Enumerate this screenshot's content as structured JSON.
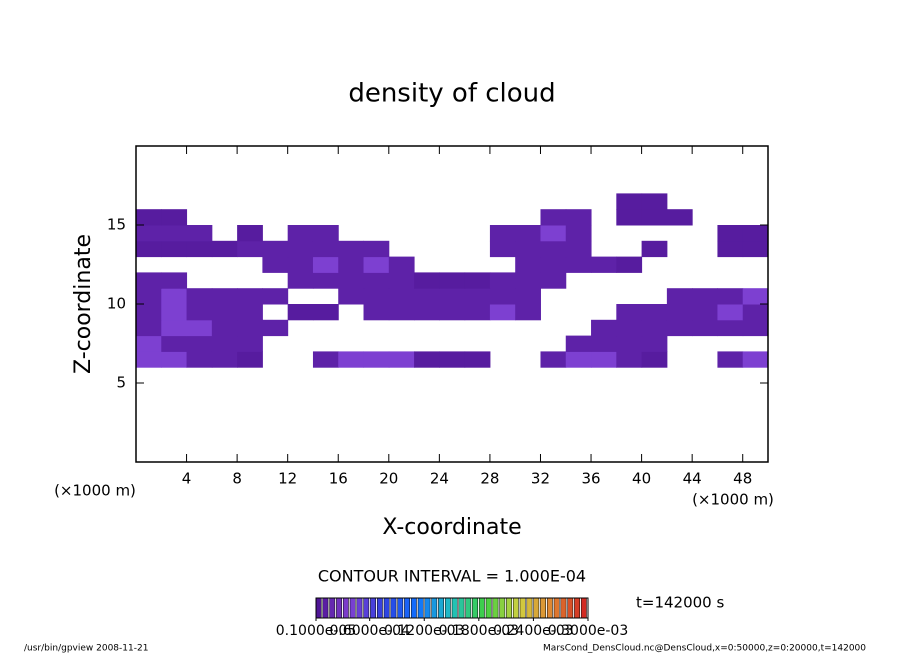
{
  "chart_data": {
    "type": "contour",
    "title": "density of cloud",
    "x_label": "X-coordinate",
    "y_label": "Z-coordinate",
    "x_unit": "(×1000 m)",
    "y_unit": "(×1000 m)",
    "xlim": [
      0,
      50
    ],
    "ylim": [
      0,
      20
    ],
    "xticks": [
      4,
      8,
      12,
      16,
      20,
      24,
      28,
      32,
      36,
      40,
      44,
      48
    ],
    "yticks": [
      5,
      10,
      15
    ],
    "x": [
      1,
      3,
      5,
      7,
      9,
      11,
      13,
      15,
      17,
      19,
      21,
      23,
      25,
      27,
      29,
      31,
      33,
      35,
      37,
      39,
      41,
      43,
      45,
      47,
      49
    ],
    "z": [
      6.5,
      7.5,
      8.5,
      9.5,
      10.5,
      11.5,
      12.5,
      13.5,
      14.5,
      15.5,
      16.5
    ],
    "values": [
      [
        4e-05,
        4e-05,
        1.5e-05,
        1.5e-05,
        1e-05,
        null,
        null,
        1.5e-05,
        4e-05,
        4e-05,
        4e-05,
        1e-05,
        1e-05,
        1e-05,
        null,
        null,
        1.5e-05,
        4e-05,
        4e-05,
        1.5e-05,
        1e-05,
        null,
        null,
        1.5e-05,
        4e-05
      ],
      [
        4e-05,
        1.5e-05,
        1.5e-05,
        1.5e-05,
        1.5e-05,
        null,
        null,
        null,
        null,
        null,
        null,
        null,
        null,
        null,
        null,
        null,
        null,
        1.5e-05,
        1.5e-05,
        1.5e-05,
        1.5e-05,
        null,
        null,
        null,
        null
      ],
      [
        1.5e-05,
        4e-05,
        4e-05,
        1.5e-05,
        1.5e-05,
        1.5e-05,
        null,
        null,
        null,
        null,
        null,
        null,
        null,
        null,
        null,
        null,
        null,
        null,
        1.5e-05,
        1.5e-05,
        1.5e-05,
        1.5e-05,
        1.5e-05,
        1.5e-05,
        1.5e-05
      ],
      [
        1.5e-05,
        4e-05,
        1.5e-05,
        1.5e-05,
        1.5e-05,
        null,
        1e-05,
        1e-05,
        null,
        1.5e-05,
        1.5e-05,
        1.5e-05,
        1.5e-05,
        1.5e-05,
        4e-05,
        1.5e-05,
        null,
        null,
        null,
        1.5e-05,
        1.5e-05,
        1.5e-05,
        1.5e-05,
        4e-05,
        1.5e-05
      ],
      [
        1.5e-05,
        4e-05,
        1.5e-05,
        1.5e-05,
        1.5e-05,
        1.5e-05,
        null,
        null,
        1.5e-05,
        1.5e-05,
        1.5e-05,
        1.5e-05,
        1.5e-05,
        1.5e-05,
        1.5e-05,
        1.5e-05,
        null,
        null,
        null,
        null,
        null,
        1.5e-05,
        1.5e-05,
        1.5e-05,
        4e-05
      ],
      [
        1.5e-05,
        1.5e-05,
        null,
        null,
        null,
        null,
        1.5e-05,
        1.5e-05,
        1.5e-05,
        1.5e-05,
        1.5e-05,
        1e-05,
        1e-05,
        1e-05,
        1.5e-05,
        1.5e-05,
        1.5e-05,
        null,
        null,
        null,
        null,
        null,
        null,
        null,
        null
      ],
      [
        null,
        null,
        null,
        null,
        null,
        1.5e-05,
        1.5e-05,
        4e-05,
        1.5e-05,
        4e-05,
        1.5e-05,
        null,
        null,
        null,
        null,
        1.5e-05,
        1.5e-05,
        1.5e-05,
        1.5e-05,
        1e-05,
        null,
        null,
        null,
        null,
        null
      ],
      [
        1e-05,
        1e-05,
        1e-05,
        1e-05,
        1.5e-05,
        1.5e-05,
        1.5e-05,
        1.5e-05,
        1.5e-05,
        1.5e-05,
        null,
        null,
        null,
        null,
        1.5e-05,
        1.5e-05,
        1.5e-05,
        1.5e-05,
        null,
        null,
        1e-05,
        null,
        null,
        1e-05,
        1e-05
      ],
      [
        1.5e-05,
        1.5e-05,
        1.5e-05,
        null,
        1e-05,
        null,
        1.5e-05,
        1.5e-05,
        null,
        null,
        null,
        null,
        null,
        null,
        1.5e-05,
        1.5e-05,
        4e-05,
        1.5e-05,
        null,
        null,
        null,
        null,
        null,
        1e-05,
        1e-05
      ],
      [
        1e-05,
        1e-05,
        null,
        null,
        null,
        null,
        null,
        null,
        null,
        null,
        null,
        null,
        null,
        null,
        null,
        null,
        1.5e-05,
        1.5e-05,
        null,
        1e-05,
        1e-05,
        1e-05,
        null,
        null,
        null
      ],
      [
        null,
        null,
        null,
        null,
        null,
        null,
        null,
        null,
        null,
        null,
        null,
        null,
        null,
        null,
        null,
        null,
        null,
        null,
        null,
        1e-05,
        1e-05,
        null,
        null,
        null,
        null
      ]
    ],
    "colorbar": {
      "lim": [
        1e-06,
        0.0003
      ],
      "colors": [
        "#4a1090",
        "#8040d0",
        "#3040e0",
        "#1070ff",
        "#20c0c0",
        "#40d040",
        "#d0d040",
        "#e08030",
        "#d02020"
      ],
      "ticks": [
        {
          "value": 1e-06,
          "label": "0.1000e-05"
        },
        {
          "value": 6e-05,
          "label": "0.6000e-04"
        },
        {
          "value": 0.00012,
          "label": "0.1200e-03"
        },
        {
          "value": 0.00018,
          "label": "0.1800e-03"
        },
        {
          "value": 0.00024,
          "label": "0.2400e-03"
        },
        {
          "value": 0.0003,
          "label": "0.3000e-03"
        }
      ]
    },
    "contour_interval": "CONTOUR INTERVAL = 1.000E-04",
    "time": "t=142000 s",
    "footer_left": "/usr/bin/gpview  2008-11-21",
    "footer_right": "MarsCond_DensCloud.nc@DensCloud,x=0:50000,z=0:20000,t=142000"
  }
}
